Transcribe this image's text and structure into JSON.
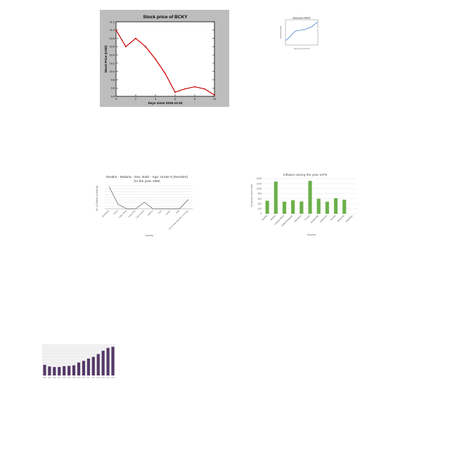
{
  "chart_data": [
    {
      "type": "line",
      "title": "Stock price of BCKY",
      "xlabel": "Days since 2015-12-20",
      "ylabel": "Stock Price (USD)",
      "x": [
        0,
        1,
        2,
        3,
        4,
        5,
        6,
        7,
        8,
        9,
        10
      ],
      "series": [
        {
          "values": [
            11.0,
            10.6,
            10.8,
            10.6,
            10.3,
            9.95,
            9.5,
            9.58,
            9.63,
            9.58,
            9.43
          ]
        }
      ],
      "xlim": [
        0,
        10
      ],
      "ylim": [
        9.4,
        11.2
      ],
      "xticks": [
        "0",
        "2",
        "4",
        "6",
        "8",
        "10"
      ],
      "yticks": [
        "9.4",
        "9.6",
        "9.8",
        "10.0",
        "10.2",
        "10.4",
        "10.6",
        "10.8",
        "11.0",
        "11.2"
      ],
      "colors": {
        "line": "#cc0000",
        "frame": "#bdbdbd",
        "plot": "#ffffff"
      },
      "grid": false
    },
    {
      "type": "line",
      "title": "Stock price of BCKY",
      "xlabel": "Days since 2015-12-20",
      "ylabel": "Stock Price (USD)",
      "x": [
        0,
        1,
        2,
        3,
        4,
        5,
        6,
        7,
        8,
        9,
        10
      ],
      "series": [
        {
          "values": [
            2,
            3,
            4.5,
            6,
            6.3,
            6.5,
            6.7,
            7.3,
            7.8,
            9,
            10
          ]
        }
      ],
      "ylim": [
        0,
        11
      ],
      "colors": {
        "line": "#4a7ec9"
      },
      "grid": false
    },
    {
      "type": "line",
      "title": "Deaths - Malaria - Sex: Both - Age: Under 5 (Number)",
      "subtitle": "for the year 1990",
      "xlabel": "Country",
      "ylabel": "No. of Deaths (in Millions)",
      "categories": [
        "Zimbabwe",
        "Benin",
        "Cabo Verde",
        "Costa Rica",
        "Cote d'Ivoire",
        "Djibouti",
        "Cuba",
        "Gabon",
        "Haiti",
        "Democratic Republic of Congo"
      ],
      "series": [
        {
          "values": [
            0.095,
            0.02,
            0.0,
            0.0,
            0.028,
            0.0,
            0.0,
            0.0,
            0.0,
            0.04
          ]
        }
      ],
      "ylim": [
        0,
        0.1
      ],
      "colors": {
        "line": "#555555",
        "grid": "#dddddd"
      },
      "grid": true
    },
    {
      "type": "bar",
      "title": "Inflation during the year 1979",
      "xlabel": "Country",
      "ylabel": "Consumer price index",
      "categories": [
        "Austria",
        "Bolivia",
        "Central Africa",
        "United Kingdom",
        "Dominica",
        "France",
        "Guatemala",
        "Indonesia",
        "Kuwait",
        "Malaysia",
        "Mauritius"
      ],
      "values": [
        520,
        1280,
        480,
        540,
        490,
        1310,
        600,
        480,
        620,
        560,
        0
      ],
      "ylim": [
        0,
        1400
      ],
      "yticks": [
        "0",
        "200",
        "400",
        "600",
        "800",
        "1000",
        "1200",
        "1400"
      ],
      "colors": {
        "bar": "#6bb04b",
        "grid": "#e3e3e3"
      },
      "grid": true
    },
    {
      "type": "bar",
      "categories": [
        "2002",
        "2003",
        "2004",
        "2005",
        "2006",
        "2007",
        "2008",
        "2009",
        "2010",
        "2011",
        "2012",
        "2013",
        "2014",
        "2015",
        "2016"
      ],
      "values": [
        1900,
        1600,
        1500,
        1500,
        1650,
        1700,
        1800,
        2300,
        2600,
        3000,
        3300,
        3800,
        4400,
        4900,
        5100
      ],
      "ylim": [
        0,
        5500
      ],
      "colors": {
        "bar": "#553868",
        "plot": "#f2f2f2",
        "grid": "#d7d7d7"
      },
      "grid": true
    }
  ]
}
